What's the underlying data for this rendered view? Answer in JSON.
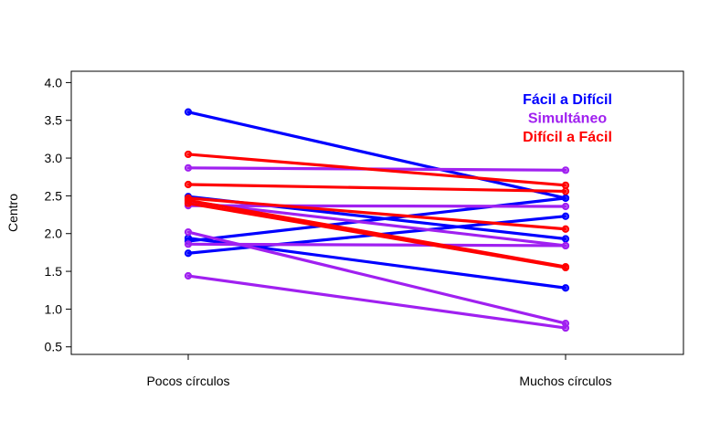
{
  "chart_data": {
    "type": "line",
    "categories": [
      "Pocos círculos",
      "Muchos círculos"
    ],
    "ylabel": "Centro",
    "xlabel": "",
    "ylim": [
      0.4,
      4.15
    ],
    "yticks": [
      "0.5",
      "1.0",
      "1.5",
      "2.0",
      "2.5",
      "3.0",
      "3.5",
      "4.0"
    ],
    "legend": {
      "position": "top-right",
      "entries": [
        {
          "label": "Fácil a Difícil",
          "color": "#0000ff"
        },
        {
          "label": "Simultáneo",
          "color": "#a020f0"
        },
        {
          "label": "Difícil a Fácil",
          "color": "#ff0000"
        }
      ]
    },
    "series": [
      {
        "group": 0,
        "values": [
          3.61,
          2.47
        ]
      },
      {
        "group": 0,
        "values": [
          2.49,
          1.93
        ]
      },
      {
        "group": 0,
        "values": [
          1.94,
          1.28
        ]
      },
      {
        "group": 0,
        "values": [
          1.74,
          2.23
        ]
      },
      {
        "group": 0,
        "values": [
          1.9,
          2.47
        ]
      },
      {
        "group": 1,
        "values": [
          2.87,
          2.84
        ]
      },
      {
        "group": 1,
        "values": [
          2.37,
          2.36
        ]
      },
      {
        "group": 1,
        "values": [
          2.42,
          1.84
        ]
      },
      {
        "group": 1,
        "values": [
          2.02,
          0.81
        ]
      },
      {
        "group": 1,
        "values": [
          1.44,
          0.75
        ]
      },
      {
        "group": 1,
        "values": [
          1.86,
          1.84
        ]
      },
      {
        "group": 2,
        "values": [
          3.05,
          2.64
        ]
      },
      {
        "group": 2,
        "values": [
          2.65,
          2.56
        ]
      },
      {
        "group": 2,
        "values": [
          2.47,
          2.06
        ]
      },
      {
        "group": 2,
        "values": [
          2.44,
          1.56
        ]
      },
      {
        "group": 2,
        "values": [
          2.4,
          1.55
        ]
      }
    ]
  }
}
